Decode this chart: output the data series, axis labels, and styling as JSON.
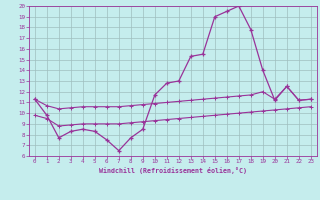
{
  "x_values": [
    0,
    1,
    2,
    3,
    4,
    5,
    6,
    7,
    8,
    9,
    10,
    11,
    12,
    13,
    14,
    15,
    16,
    17,
    18,
    19,
    20,
    21,
    22,
    23
  ],
  "main_line_y": [
    11.3,
    9.8,
    7.7,
    8.3,
    8.5,
    8.3,
    7.5,
    6.5,
    7.7,
    8.5,
    11.7,
    12.8,
    13.0,
    15.3,
    15.5,
    19.0,
    19.5,
    20.0,
    17.8,
    14.0,
    11.2,
    12.5,
    11.2,
    11.3
  ],
  "upper_line_y": [
    11.3,
    10.7,
    10.4,
    10.5,
    10.6,
    10.6,
    10.6,
    10.6,
    10.7,
    10.8,
    10.9,
    11.0,
    11.1,
    11.2,
    11.3,
    11.4,
    11.5,
    11.6,
    11.7,
    12.0,
    11.3,
    12.5,
    11.2,
    11.3
  ],
  "lower_line_y": [
    9.8,
    9.5,
    8.8,
    8.9,
    9.0,
    9.0,
    9.0,
    9.0,
    9.1,
    9.2,
    9.3,
    9.4,
    9.5,
    9.6,
    9.7,
    9.8,
    9.9,
    10.0,
    10.1,
    10.2,
    10.3,
    10.4,
    10.5,
    10.6
  ],
  "color": "#993399",
  "bg_color": "#c5eded",
  "grid_color": "#9fbfbf",
  "xlabel": "Windchill (Refroidissement éolien,°C)",
  "xlim": [
    -0.5,
    23.5
  ],
  "ylim": [
    6,
    20
  ],
  "yticks": [
    6,
    7,
    8,
    9,
    10,
    11,
    12,
    13,
    14,
    15,
    16,
    17,
    18,
    19,
    20
  ],
  "xticks": [
    0,
    1,
    2,
    3,
    4,
    5,
    6,
    7,
    8,
    9,
    10,
    11,
    12,
    13,
    14,
    15,
    16,
    17,
    18,
    19,
    20,
    21,
    22,
    23
  ]
}
